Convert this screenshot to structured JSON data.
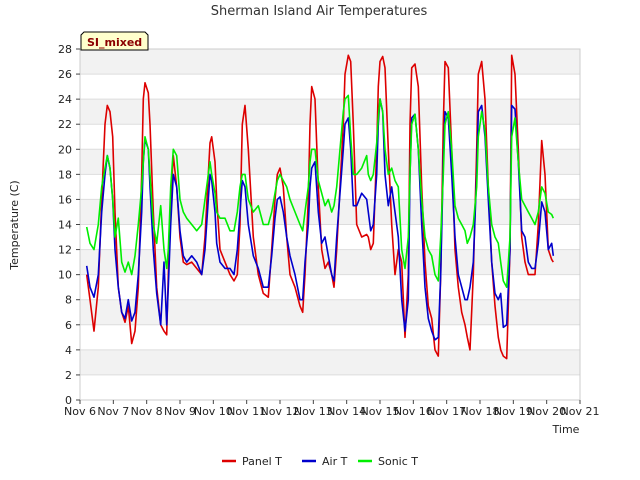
{
  "chart_data": {
    "type": "line",
    "title": "Sherman Island Air Temperatures",
    "xlabel": "Time",
    "ylabel": "Temperature (C)",
    "badge": "SI_mixed",
    "ylim": [
      0,
      28
    ],
    "yticks": [
      0,
      2,
      4,
      6,
      8,
      10,
      12,
      14,
      16,
      18,
      20,
      22,
      24,
      26,
      28
    ],
    "xlim": [
      6,
      21
    ],
    "xticks": [
      6,
      7,
      8,
      9,
      10,
      11,
      12,
      13,
      14,
      15,
      16,
      17,
      18,
      19,
      20,
      21
    ],
    "xtick_labels": [
      "Nov 6",
      "Nov 7",
      "Nov 8",
      "Nov 9",
      "Nov 10",
      "Nov 11",
      "Nov 12",
      "Nov 13",
      "Nov 14",
      "Nov 15",
      "Nov 16",
      "Nov 17",
      "Nov 18",
      "Nov 19",
      "Nov 20",
      "Nov 21"
    ],
    "grid": true,
    "legend_position": "bottom-center",
    "series": [
      {
        "name": "Panel T",
        "color": "#dd0000",
        "x": [
          6.2,
          6.3,
          6.42,
          6.55,
          6.65,
          6.75,
          6.82,
          6.9,
          6.98,
          7.05,
          7.15,
          7.25,
          7.35,
          7.45,
          7.55,
          7.65,
          7.75,
          7.85,
          7.9,
          7.95,
          8.05,
          8.1,
          8.2,
          8.3,
          8.42,
          8.52,
          8.6,
          8.65,
          8.72,
          8.8,
          8.9,
          9.0,
          9.1,
          9.2,
          9.35,
          9.5,
          9.65,
          9.75,
          9.85,
          9.9,
          9.95,
          10.05,
          10.1,
          10.2,
          10.35,
          10.5,
          10.62,
          10.72,
          10.8,
          10.87,
          10.95,
          11.05,
          11.2,
          11.35,
          11.5,
          11.65,
          11.75,
          11.85,
          11.92,
          12.0,
          12.1,
          12.2,
          12.3,
          12.45,
          12.6,
          12.68,
          12.75,
          12.85,
          12.9,
          12.95,
          13.05,
          13.15,
          13.25,
          13.35,
          13.45,
          13.55,
          13.62,
          13.7,
          13.8,
          13.9,
          13.95,
          14.05,
          14.12,
          14.2,
          14.3,
          14.45,
          14.6,
          14.65,
          14.72,
          14.8,
          14.9,
          14.95,
          15.0,
          15.08,
          15.15,
          15.25,
          15.35,
          15.45,
          15.55,
          15.65,
          15.75,
          15.85,
          15.9,
          15.95,
          16.05,
          16.15,
          16.25,
          16.35,
          16.45,
          16.55,
          16.65,
          16.75,
          16.82,
          16.9,
          16.95,
          17.05,
          17.15,
          17.25,
          17.35,
          17.45,
          17.55,
          17.62,
          17.7,
          17.8,
          17.9,
          17.95,
          18.05,
          18.15,
          18.25,
          18.35,
          18.45,
          18.55,
          18.62,
          18.7,
          18.8,
          18.9,
          18.95,
          19.05,
          19.15,
          19.25,
          19.35,
          19.45,
          19.55,
          19.65,
          19.75,
          19.85,
          19.95,
          20.05,
          20.15,
          20.2
        ],
        "values": [
          10.0,
          8.0,
          5.5,
          9.0,
          16.0,
          22.0,
          23.5,
          23.0,
          21.0,
          15.0,
          9.0,
          7.0,
          6.2,
          7.5,
          4.5,
          5.5,
          9.0,
          18.0,
          24.0,
          25.3,
          24.5,
          22.0,
          15.0,
          9.0,
          6.0,
          5.5,
          5.2,
          10.0,
          16.0,
          19.5,
          17.0,
          13.0,
          11.0,
          10.8,
          11.0,
          10.5,
          10.0,
          13.0,
          18.0,
          20.5,
          21.0,
          19.0,
          16.0,
          12.0,
          11.0,
          10.0,
          9.5,
          10.0,
          14.0,
          22.0,
          23.5,
          20.0,
          13.0,
          10.0,
          8.5,
          8.2,
          12.0,
          16.0,
          18.0,
          18.5,
          17.0,
          13.0,
          10.0,
          9.0,
          7.5,
          7.0,
          10.0,
          16.0,
          22.0,
          25.0,
          24.0,
          17.0,
          12.0,
          10.5,
          11.0,
          10.0,
          9.0,
          12.0,
          17.0,
          22.0,
          26.0,
          27.5,
          27.0,
          22.0,
          14.0,
          13.0,
          13.2,
          13.0,
          12.0,
          12.5,
          20.0,
          25.0,
          27.0,
          27.4,
          26.5,
          20.0,
          14.0,
          10.0,
          12.0,
          11.0,
          5.0,
          10.0,
          22.0,
          26.5,
          26.8,
          25.0,
          17.0,
          11.0,
          7.5,
          6.5,
          4.0,
          3.5,
          10.0,
          22.0,
          27.0,
          26.5,
          20.0,
          12.0,
          9.0,
          7.0,
          6.0,
          5.0,
          4.0,
          10.0,
          20.0,
          26.0,
          27.0,
          24.0,
          17.0,
          11.0,
          7.5,
          5.0,
          4.0,
          3.5,
          3.3,
          12.0,
          27.5,
          26.0,
          20.0,
          13.0,
          11.0,
          10.0,
          10.0,
          10.0,
          14.0,
          20.7,
          18.0,
          12.0,
          11.2,
          11.0
        ]
      },
      {
        "name": "Air T",
        "color": "#0000cc",
        "x": [
          6.2,
          6.3,
          6.42,
          6.55,
          6.65,
          6.75,
          6.82,
          6.9,
          6.98,
          7.05,
          7.15,
          7.25,
          7.35,
          7.45,
          7.55,
          7.65,
          7.75,
          7.85,
          7.9,
          7.95,
          8.05,
          8.1,
          8.2,
          8.3,
          8.42,
          8.52,
          8.6,
          8.65,
          8.72,
          8.8,
          8.9,
          9.0,
          9.1,
          9.2,
          9.35,
          9.5,
          9.65,
          9.75,
          9.85,
          9.9,
          9.95,
          10.05,
          10.1,
          10.2,
          10.35,
          10.5,
          10.62,
          10.72,
          10.8,
          10.87,
          10.95,
          11.05,
          11.2,
          11.35,
          11.5,
          11.65,
          11.75,
          11.85,
          11.92,
          12.0,
          12.1,
          12.2,
          12.3,
          12.45,
          12.6,
          12.68,
          12.75,
          12.85,
          12.9,
          12.95,
          13.05,
          13.15,
          13.25,
          13.35,
          13.45,
          13.55,
          13.62,
          13.7,
          13.8,
          13.9,
          13.95,
          14.05,
          14.12,
          14.2,
          14.3,
          14.45,
          14.6,
          14.65,
          14.72,
          14.8,
          14.9,
          14.95,
          15.0,
          15.08,
          15.15,
          15.25,
          15.35,
          15.45,
          15.55,
          15.65,
          15.75,
          15.85,
          15.9,
          15.95,
          16.05,
          16.15,
          16.25,
          16.35,
          16.45,
          16.55,
          16.65,
          16.75,
          16.82,
          16.9,
          16.95,
          17.05,
          17.15,
          17.25,
          17.35,
          17.45,
          17.55,
          17.62,
          17.7,
          17.8,
          17.9,
          17.95,
          18.05,
          18.15,
          18.25,
          18.35,
          18.45,
          18.55,
          18.62,
          18.7,
          18.8,
          18.9,
          18.95,
          19.05,
          19.15,
          19.25,
          19.35,
          19.45,
          19.55,
          19.65,
          19.75,
          19.85,
          19.95,
          20.05,
          20.15,
          20.2
        ],
        "values": [
          10.7,
          9.0,
          8.2,
          10.0,
          15.0,
          18.0,
          19.5,
          18.5,
          16.0,
          12.0,
          9.0,
          7.0,
          6.5,
          8.0,
          6.3,
          7.0,
          10.0,
          15.0,
          19.0,
          20.8,
          20.0,
          17.0,
          12.0,
          8.5,
          6.0,
          11.0,
          6.0,
          9.0,
          14.0,
          18.0,
          17.0,
          13.5,
          11.5,
          11.0,
          11.5,
          11.0,
          10.0,
          12.0,
          16.0,
          18.0,
          17.5,
          15.0,
          12.5,
          11.0,
          10.5,
          10.5,
          10.0,
          12.0,
          15.0,
          17.5,
          17.0,
          14.0,
          11.5,
          10.5,
          9.0,
          9.0,
          11.5,
          14.5,
          16.0,
          16.2,
          15.0,
          13.0,
          11.5,
          10.0,
          8.0,
          8.0,
          11.0,
          14.0,
          17.0,
          18.5,
          19.0,
          15.0,
          12.5,
          13.0,
          11.5,
          10.0,
          9.5,
          13.0,
          16.5,
          20.0,
          22.0,
          22.5,
          20.0,
          15.5,
          15.5,
          16.5,
          16.0,
          15.0,
          13.5,
          14.0,
          18.0,
          22.0,
          24.0,
          23.0,
          18.0,
          15.5,
          17.0,
          15.0,
          13.0,
          8.0,
          5.5,
          8.0,
          18.0,
          22.5,
          22.8,
          20.0,
          14.0,
          9.0,
          6.5,
          5.5,
          4.8,
          5.0,
          10.0,
          19.0,
          23.0,
          22.5,
          18.0,
          13.0,
          10.0,
          9.0,
          8.0,
          8.0,
          9.0,
          11.0,
          18.0,
          23.0,
          23.5,
          21.0,
          16.0,
          11.0,
          8.5,
          8.0,
          8.5,
          5.8,
          6.0,
          12.0,
          23.5,
          23.2,
          19.0,
          13.5,
          13.0,
          11.0,
          10.5,
          10.5,
          12.5,
          15.8,
          15.0,
          12.0,
          12.5,
          11.5
        ]
      },
      {
        "name": "Sonic T",
        "color": "#00ee00",
        "x": [
          6.2,
          6.3,
          6.42,
          6.55,
          6.65,
          6.75,
          6.82,
          6.9,
          6.98,
          7.05,
          7.15,
          7.25,
          7.35,
          7.45,
          7.55,
          7.65,
          7.75,
          7.85,
          7.9,
          7.95,
          8.05,
          8.1,
          8.2,
          8.3,
          8.42,
          8.52,
          8.6,
          8.65,
          8.72,
          8.8,
          8.9,
          9.0,
          9.1,
          9.2,
          9.35,
          9.5,
          9.65,
          9.75,
          9.85,
          9.9,
          9.95,
          10.05,
          10.1,
          10.2,
          10.35,
          10.5,
          10.62,
          10.72,
          10.8,
          10.87,
          10.95,
          11.05,
          11.2,
          11.35,
          11.5,
          11.65,
          11.75,
          11.85,
          11.92,
          12.0,
          12.1,
          12.2,
          12.3,
          12.45,
          12.6,
          12.68,
          12.75,
          12.85,
          12.9,
          12.95,
          13.05,
          13.15,
          13.25,
          13.35,
          13.45,
          13.55,
          13.62,
          13.7,
          13.8,
          13.9,
          13.95,
          14.05,
          14.12,
          14.2,
          14.3,
          14.45,
          14.6,
          14.65,
          14.72,
          14.8,
          14.9,
          14.95,
          15.0,
          15.08,
          15.15,
          15.25,
          15.35,
          15.45,
          15.55,
          15.65,
          15.75,
          15.85,
          15.9,
          15.95,
          16.05,
          16.15,
          16.25,
          16.35,
          16.45,
          16.55,
          16.65,
          16.75,
          16.82,
          16.9,
          16.95,
          17.05,
          17.15,
          17.25,
          17.35,
          17.45,
          17.55,
          17.62,
          17.7,
          17.8,
          17.9,
          17.95,
          18.05,
          18.15,
          18.25,
          18.35,
          18.45,
          18.55,
          18.62,
          18.7,
          18.8,
          18.9,
          18.95,
          19.05,
          19.15,
          19.25,
          19.35,
          19.45,
          19.55,
          19.65,
          19.75,
          19.85,
          19.95,
          20.05,
          20.15,
          20.2
        ],
        "values": [
          13.8,
          12.5,
          12.0,
          14.0,
          17.0,
          18.5,
          19.5,
          18.5,
          16.0,
          13.0,
          14.5,
          11.0,
          10.2,
          11.0,
          10.0,
          11.5,
          14.0,
          17.0,
          19.0,
          21.0,
          20.0,
          18.0,
          14.0,
          12.5,
          15.5,
          12.0,
          10.5,
          12.0,
          17.0,
          20.0,
          19.5,
          16.0,
          15.0,
          14.5,
          14.0,
          13.5,
          14.0,
          16.0,
          18.0,
          19.0,
          18.0,
          16.5,
          15.0,
          14.5,
          14.5,
          13.5,
          13.5,
          15.0,
          17.0,
          18.0,
          18.0,
          16.0,
          15.0,
          15.5,
          14.0,
          14.0,
          15.0,
          16.5,
          17.5,
          18.0,
          17.5,
          17.0,
          16.0,
          15.0,
          14.0,
          13.5,
          15.0,
          17.0,
          19.0,
          20.0,
          20.0,
          17.5,
          16.5,
          15.5,
          16.0,
          15.0,
          15.5,
          17.0,
          20.0,
          23.0,
          24.0,
          24.3,
          21.0,
          18.0,
          18.0,
          18.5,
          19.5,
          18.0,
          17.5,
          18.0,
          20.5,
          22.5,
          24.0,
          23.0,
          20.0,
          18.0,
          18.5,
          17.5,
          17.0,
          12.0,
          10.5,
          13.0,
          18.0,
          22.0,
          22.8,
          20.0,
          16.0,
          13.0,
          12.0,
          11.5,
          10.0,
          9.5,
          13.0,
          18.0,
          22.0,
          23.0,
          20.0,
          15.5,
          14.5,
          14.0,
          13.5,
          12.5,
          13.0,
          14.0,
          17.0,
          21.0,
          23.0,
          21.5,
          17.0,
          14.0,
          13.0,
          12.5,
          11.0,
          9.5,
          9.0,
          13.0,
          21.0,
          22.5,
          19.0,
          16.0,
          15.5,
          15.0,
          14.5,
          14.0,
          15.0,
          17.0,
          16.5,
          15.0,
          14.8,
          14.5
        ]
      }
    ]
  }
}
